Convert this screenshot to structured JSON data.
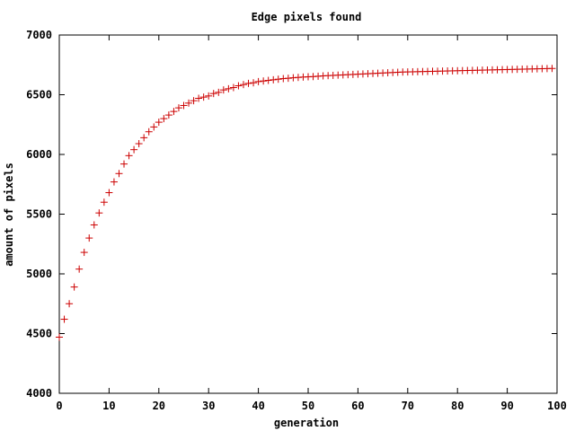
{
  "chart_data": {
    "type": "scatter",
    "title": "Edge pixels found",
    "xlabel": "generation",
    "ylabel": "amount of pixels",
    "xlim": [
      0,
      100
    ],
    "ylim": [
      4000,
      7000
    ],
    "xticks": [
      0,
      10,
      20,
      30,
      40,
      50,
      60,
      70,
      80,
      90,
      100
    ],
    "yticks": [
      4000,
      4500,
      5000,
      5500,
      6000,
      6500,
      7000
    ],
    "grid": false,
    "legend": "none",
    "marker": "plus",
    "color": "#cc0000",
    "series": [
      {
        "x": [
          0,
          1,
          2,
          3,
          4,
          5,
          6,
          7,
          8,
          9,
          10,
          11,
          12,
          13,
          14,
          15,
          16,
          17,
          18,
          19,
          20,
          21,
          22,
          23,
          24,
          25,
          26,
          27,
          28,
          29,
          30,
          31,
          32,
          33,
          34,
          35,
          36,
          37,
          38,
          39,
          40,
          41,
          42,
          43,
          44,
          45,
          46,
          47,
          48,
          49,
          50,
          51,
          52,
          53,
          54,
          55,
          56,
          57,
          58,
          59,
          60,
          61,
          62,
          63,
          64,
          65,
          66,
          67,
          68,
          69,
          70,
          71,
          72,
          73,
          74,
          75,
          76,
          77,
          78,
          79,
          80,
          81,
          82,
          83,
          84,
          85,
          86,
          87,
          88,
          89,
          90,
          91,
          92,
          93,
          94,
          95,
          96,
          97,
          98,
          99
        ],
        "y": [
          4470,
          4620,
          4750,
          4890,
          5040,
          5180,
          5300,
          5410,
          5510,
          5600,
          5680,
          5770,
          5840,
          5920,
          5990,
          6040,
          6090,
          6140,
          6190,
          6230,
          6270,
          6300,
          6330,
          6360,
          6390,
          6410,
          6430,
          6450,
          6470,
          6480,
          6490,
          6510,
          6520,
          6540,
          6550,
          6560,
          6575,
          6585,
          6595,
          6600,
          6610,
          6615,
          6620,
          6625,
          6630,
          6635,
          6638,
          6642,
          6645,
          6648,
          6650,
          6652,
          6655,
          6658,
          6660,
          6662,
          6664,
          6666,
          6668,
          6670,
          6672,
          6674,
          6676,
          6678,
          6680,
          6682,
          6684,
          6686,
          6688,
          6690,
          6691,
          6692,
          6693,
          6694,
          6695,
          6696,
          6697,
          6698,
          6699,
          6700,
          6701,
          6702,
          6703,
          6704,
          6705,
          6706,
          6707,
          6708,
          6709,
          6710,
          6711,
          6712,
          6713,
          6714,
          6715,
          6716,
          6717,
          6718,
          6719,
          6720
        ]
      }
    ]
  }
}
